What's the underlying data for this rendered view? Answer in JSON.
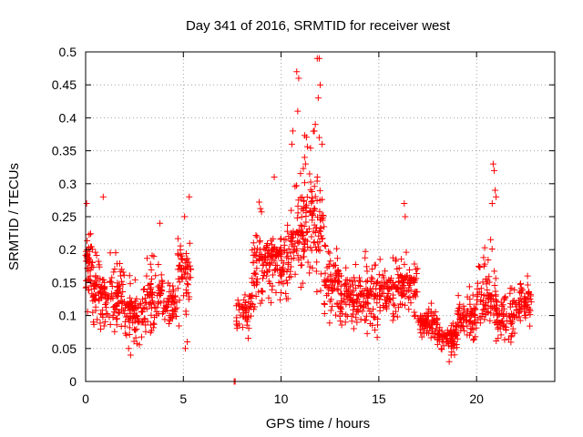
{
  "chart_data": {
    "type": "scatter",
    "title": "Day 341 of 2016, SRMTID for receiver west",
    "xlabel": "GPS time / hours",
    "ylabel": "SRMTID / TECUs",
    "xlim": [
      0,
      24
    ],
    "ylim": [
      0,
      0.5
    ],
    "xticks": [
      "0",
      "5",
      "10",
      "15",
      "20"
    ],
    "yticks": [
      "0",
      "0.05",
      "0.1",
      "0.15",
      "0.2",
      "0.25",
      "0.3",
      "0.35",
      "0.4",
      "0.45",
      "0.5"
    ],
    "grid": true,
    "marker": "+",
    "series": [
      {
        "name": "SRMTID",
        "color": "#ff0000",
        "clusters": [
          {
            "x0": 0.0,
            "x1": 0.35,
            "ymin": 0.08,
            "ymax": 0.27,
            "base": 0.18,
            "n": 50
          },
          {
            "x0": 0.35,
            "x1": 1.0,
            "ymin": 0.05,
            "ymax": 0.22,
            "base": 0.14,
            "n": 70
          },
          {
            "x0": 1.0,
            "x1": 2.0,
            "ymin": 0.06,
            "ymax": 0.25,
            "base": 0.13,
            "n": 80
          },
          {
            "x0": 2.0,
            "x1": 3.0,
            "ymin": 0.04,
            "ymax": 0.17,
            "base": 0.11,
            "n": 80
          },
          {
            "x0": 3.0,
            "x1": 4.0,
            "ymin": 0.06,
            "ymax": 0.24,
            "base": 0.13,
            "n": 80
          },
          {
            "x0": 4.0,
            "x1": 4.7,
            "ymin": 0.07,
            "ymax": 0.18,
            "base": 0.12,
            "n": 50
          },
          {
            "x0": 4.7,
            "x1": 5.4,
            "ymin": 0.05,
            "ymax": 0.28,
            "base": 0.17,
            "n": 60
          },
          {
            "x0": 7.7,
            "x1": 8.5,
            "ymin": 0.06,
            "ymax": 0.17,
            "base": 0.11,
            "n": 50
          },
          {
            "x0": 8.5,
            "x1": 9.5,
            "ymin": 0.08,
            "ymax": 0.29,
            "base": 0.18,
            "n": 90
          },
          {
            "x0": 9.5,
            "x1": 10.5,
            "ymin": 0.1,
            "ymax": 0.3,
            "base": 0.19,
            "n": 90
          },
          {
            "x0": 10.5,
            "x1": 11.2,
            "ymin": 0.1,
            "ymax": 0.47,
            "base": 0.22,
            "n": 70
          },
          {
            "x0": 11.2,
            "x1": 12.2,
            "ymin": 0.1,
            "ymax": 0.49,
            "base": 0.25,
            "n": 90
          },
          {
            "x0": 12.2,
            "x1": 13.0,
            "ymin": 0.07,
            "ymax": 0.25,
            "base": 0.15,
            "n": 70
          },
          {
            "x0": 13.0,
            "x1": 14.0,
            "ymin": 0.06,
            "ymax": 0.22,
            "base": 0.13,
            "n": 80
          },
          {
            "x0": 14.0,
            "x1": 15.0,
            "ymin": 0.05,
            "ymax": 0.21,
            "base": 0.13,
            "n": 80
          },
          {
            "x0": 15.0,
            "x1": 16.0,
            "ymin": 0.06,
            "ymax": 0.2,
            "base": 0.14,
            "n": 80
          },
          {
            "x0": 16.0,
            "x1": 17.0,
            "ymin": 0.08,
            "ymax": 0.26,
            "base": 0.15,
            "n": 80
          },
          {
            "x0": 17.0,
            "x1": 18.0,
            "ymin": 0.05,
            "ymax": 0.14,
            "base": 0.09,
            "n": 80
          },
          {
            "x0": 18.0,
            "x1": 19.0,
            "ymin": 0.03,
            "ymax": 0.1,
            "base": 0.07,
            "n": 90
          },
          {
            "x0": 19.0,
            "x1": 20.0,
            "ymin": 0.05,
            "ymax": 0.16,
            "base": 0.1,
            "n": 80
          },
          {
            "x0": 20.0,
            "x1": 21.0,
            "ymin": 0.06,
            "ymax": 0.33,
            "base": 0.13,
            "n": 80
          },
          {
            "x0": 21.0,
            "x1": 22.0,
            "ymin": 0.04,
            "ymax": 0.17,
            "base": 0.1,
            "n": 80
          },
          {
            "x0": 22.0,
            "x1": 22.8,
            "ymin": 0.07,
            "ymax": 0.18,
            "base": 0.12,
            "n": 60
          }
        ],
        "points": [
          [
            0.05,
            0.27
          ],
          [
            0.9,
            0.28
          ],
          [
            5.3,
            0.28
          ],
          [
            7.6,
            0.0
          ],
          [
            7.65,
            0.0
          ],
          [
            10.8,
            0.47
          ],
          [
            10.9,
            0.46
          ],
          [
            11.85,
            0.49
          ],
          [
            11.95,
            0.49
          ],
          [
            12.0,
            0.45
          ],
          [
            11.9,
            0.43
          ],
          [
            10.85,
            0.41
          ],
          [
            11.7,
            0.38
          ],
          [
            11.75,
            0.39
          ],
          [
            11.95,
            0.37
          ],
          [
            12.1,
            0.36
          ],
          [
            10.6,
            0.38
          ],
          [
            10.55,
            0.36
          ],
          [
            11.2,
            0.34
          ],
          [
            11.25,
            0.33
          ],
          [
            16.3,
            0.27
          ],
          [
            16.35,
            0.25
          ],
          [
            20.85,
            0.33
          ],
          [
            20.9,
            0.32
          ],
          [
            20.95,
            0.29
          ],
          [
            21.0,
            0.28
          ],
          [
            20.8,
            0.27
          ],
          [
            3.8,
            0.24
          ],
          [
            9.65,
            0.31
          ],
          [
            2.2,
            0.05
          ],
          [
            2.3,
            0.04
          ],
          [
            5.1,
            0.05
          ],
          [
            5.2,
            0.06
          ],
          [
            18.6,
            0.03
          ],
          [
            18.7,
            0.04
          ]
        ]
      }
    ]
  }
}
